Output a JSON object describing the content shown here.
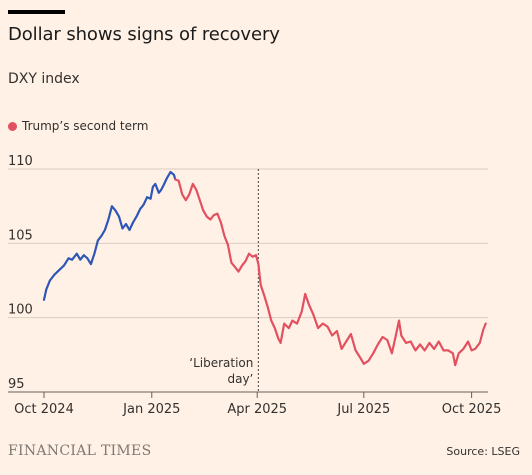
{
  "header": {
    "title": "Dollar shows signs of recovery",
    "subtitle": "DXY index"
  },
  "legend": {
    "label": "Trump’s second term"
  },
  "footer": {
    "brand": "FINANCIAL TIMES",
    "source": "Source: LSEG"
  },
  "colors": {
    "background": "#FFF1E5",
    "before": "#2E56B7",
    "trump": "#E3505F",
    "gridline": "#D9CCC1",
    "axis": "#66605C"
  },
  "chart_data": {
    "type": "line",
    "title": "Dollar shows signs of recovery",
    "subtitle": "DXY index",
    "ylim": [
      95,
      110
    ],
    "yticks": [
      95,
      100,
      105,
      110
    ],
    "xlim": [
      "2024-10-01",
      "2025-10-15"
    ],
    "xticks": [
      {
        "date": "2024-10-01",
        "label": "Oct 2024"
      },
      {
        "date": "2025-01-01",
        "label": "Jan 2025"
      },
      {
        "date": "2025-04-01",
        "label": "Apr 2025"
      },
      {
        "date": "2025-07-01",
        "label": "Jul 2025"
      },
      {
        "date": "2025-10-01",
        "label": "Oct 2025"
      }
    ],
    "annotation": {
      "date": "2025-04-02",
      "line1": "‘Liberation",
      "line2": "day’"
    },
    "grid": true,
    "series": [
      {
        "name": "",
        "color_key": "before",
        "points": [
          [
            "2024-10-01",
            101.2
          ],
          [
            "2024-10-03",
            101.9
          ],
          [
            "2024-10-06",
            102.5
          ],
          [
            "2024-10-10",
            102.9
          ],
          [
            "2024-10-14",
            103.2
          ],
          [
            "2024-10-18",
            103.5
          ],
          [
            "2024-10-22",
            104.0
          ],
          [
            "2024-10-25",
            103.9
          ],
          [
            "2024-10-29",
            104.3
          ],
          [
            "2024-11-01",
            103.9
          ],
          [
            "2024-11-04",
            104.2
          ],
          [
            "2024-11-07",
            104.0
          ],
          [
            "2024-11-10",
            103.6
          ],
          [
            "2024-11-13",
            104.3
          ],
          [
            "2024-11-16",
            105.2
          ],
          [
            "2024-11-19",
            105.5
          ],
          [
            "2024-11-22",
            105.9
          ],
          [
            "2024-11-25",
            106.6
          ],
          [
            "2024-11-28",
            107.5
          ],
          [
            "2024-12-01",
            107.2
          ],
          [
            "2024-12-04",
            106.8
          ],
          [
            "2024-12-07",
            106.0
          ],
          [
            "2024-12-10",
            106.3
          ],
          [
            "2024-12-13",
            105.9
          ],
          [
            "2024-12-16",
            106.4
          ],
          [
            "2024-12-19",
            106.8
          ],
          [
            "2024-12-22",
            107.3
          ],
          [
            "2024-12-25",
            107.6
          ],
          [
            "2024-12-28",
            108.1
          ],
          [
            "2024-12-31",
            108.0
          ],
          [
            "2025-01-02",
            108.8
          ],
          [
            "2025-01-04",
            109.0
          ],
          [
            "2025-01-07",
            108.4
          ],
          [
            "2025-01-09",
            108.6
          ],
          [
            "2025-01-11",
            108.9
          ],
          [
            "2025-01-14",
            109.4
          ],
          [
            "2025-01-17",
            109.8
          ],
          [
            "2025-01-20",
            109.6
          ],
          [
            "2025-01-21",
            109.3
          ]
        ]
      },
      {
        "name": "Trump’s second term",
        "color_key": "trump",
        "points": [
          [
            "2025-01-21",
            109.3
          ],
          [
            "2025-01-24",
            109.2
          ],
          [
            "2025-01-27",
            108.3
          ],
          [
            "2025-01-30",
            107.9
          ],
          [
            "2025-02-02",
            108.3
          ],
          [
            "2025-02-05",
            109.0
          ],
          [
            "2025-02-08",
            108.6
          ],
          [
            "2025-02-11",
            107.9
          ],
          [
            "2025-02-14",
            107.2
          ],
          [
            "2025-02-17",
            106.8
          ],
          [
            "2025-02-20",
            106.6
          ],
          [
            "2025-02-23",
            106.9
          ],
          [
            "2025-02-26",
            107.0
          ],
          [
            "2025-03-01",
            106.4
          ],
          [
            "2025-03-04",
            105.5
          ],
          [
            "2025-03-07",
            104.9
          ],
          [
            "2025-03-10",
            103.7
          ],
          [
            "2025-03-13",
            103.4
          ],
          [
            "2025-03-16",
            103.1
          ],
          [
            "2025-03-19",
            103.5
          ],
          [
            "2025-03-22",
            103.8
          ],
          [
            "2025-03-25",
            104.3
          ],
          [
            "2025-03-28",
            104.1
          ],
          [
            "2025-03-31",
            104.2
          ],
          [
            "2025-04-02",
            103.6
          ],
          [
            "2025-04-04",
            102.2
          ],
          [
            "2025-04-07",
            101.5
          ],
          [
            "2025-04-10",
            100.7
          ],
          [
            "2025-04-13",
            99.8
          ],
          [
            "2025-04-16",
            99.3
          ],
          [
            "2025-04-19",
            98.6
          ],
          [
            "2025-04-21",
            98.3
          ],
          [
            "2025-04-24",
            99.6
          ],
          [
            "2025-04-28",
            99.3
          ],
          [
            "2025-05-01",
            99.8
          ],
          [
            "2025-05-05",
            99.6
          ],
          [
            "2025-05-09",
            100.4
          ],
          [
            "2025-05-12",
            101.6
          ],
          [
            "2025-05-15",
            100.9
          ],
          [
            "2025-05-19",
            100.2
          ],
          [
            "2025-05-23",
            99.3
          ],
          [
            "2025-05-27",
            99.6
          ],
          [
            "2025-05-31",
            99.4
          ],
          [
            "2025-06-04",
            98.8
          ],
          [
            "2025-06-08",
            99.1
          ],
          [
            "2025-06-12",
            97.9
          ],
          [
            "2025-06-16",
            98.4
          ],
          [
            "2025-06-20",
            98.9
          ],
          [
            "2025-06-24",
            97.8
          ],
          [
            "2025-06-28",
            97.3
          ],
          [
            "2025-07-01",
            96.9
          ],
          [
            "2025-07-05",
            97.1
          ],
          [
            "2025-07-09",
            97.6
          ],
          [
            "2025-07-13",
            98.2
          ],
          [
            "2025-07-17",
            98.7
          ],
          [
            "2025-07-21",
            98.5
          ],
          [
            "2025-07-25",
            97.6
          ],
          [
            "2025-07-28",
            98.7
          ],
          [
            "2025-07-31",
            99.8
          ],
          [
            "2025-08-02",
            98.8
          ],
          [
            "2025-08-06",
            98.3
          ],
          [
            "2025-08-10",
            98.4
          ],
          [
            "2025-08-14",
            97.8
          ],
          [
            "2025-08-18",
            98.2
          ],
          [
            "2025-08-22",
            97.8
          ],
          [
            "2025-08-26",
            98.3
          ],
          [
            "2025-08-30",
            97.9
          ],
          [
            "2025-09-03",
            98.4
          ],
          [
            "2025-09-07",
            97.8
          ],
          [
            "2025-09-11",
            97.8
          ],
          [
            "2025-09-15",
            97.6
          ],
          [
            "2025-09-17",
            96.8
          ],
          [
            "2025-09-20",
            97.6
          ],
          [
            "2025-09-24",
            97.9
          ],
          [
            "2025-09-28",
            98.4
          ],
          [
            "2025-10-01",
            97.8
          ],
          [
            "2025-10-04",
            97.9
          ],
          [
            "2025-10-08",
            98.3
          ],
          [
            "2025-10-11",
            99.2
          ],
          [
            "2025-10-13",
            99.6
          ]
        ]
      }
    ]
  }
}
